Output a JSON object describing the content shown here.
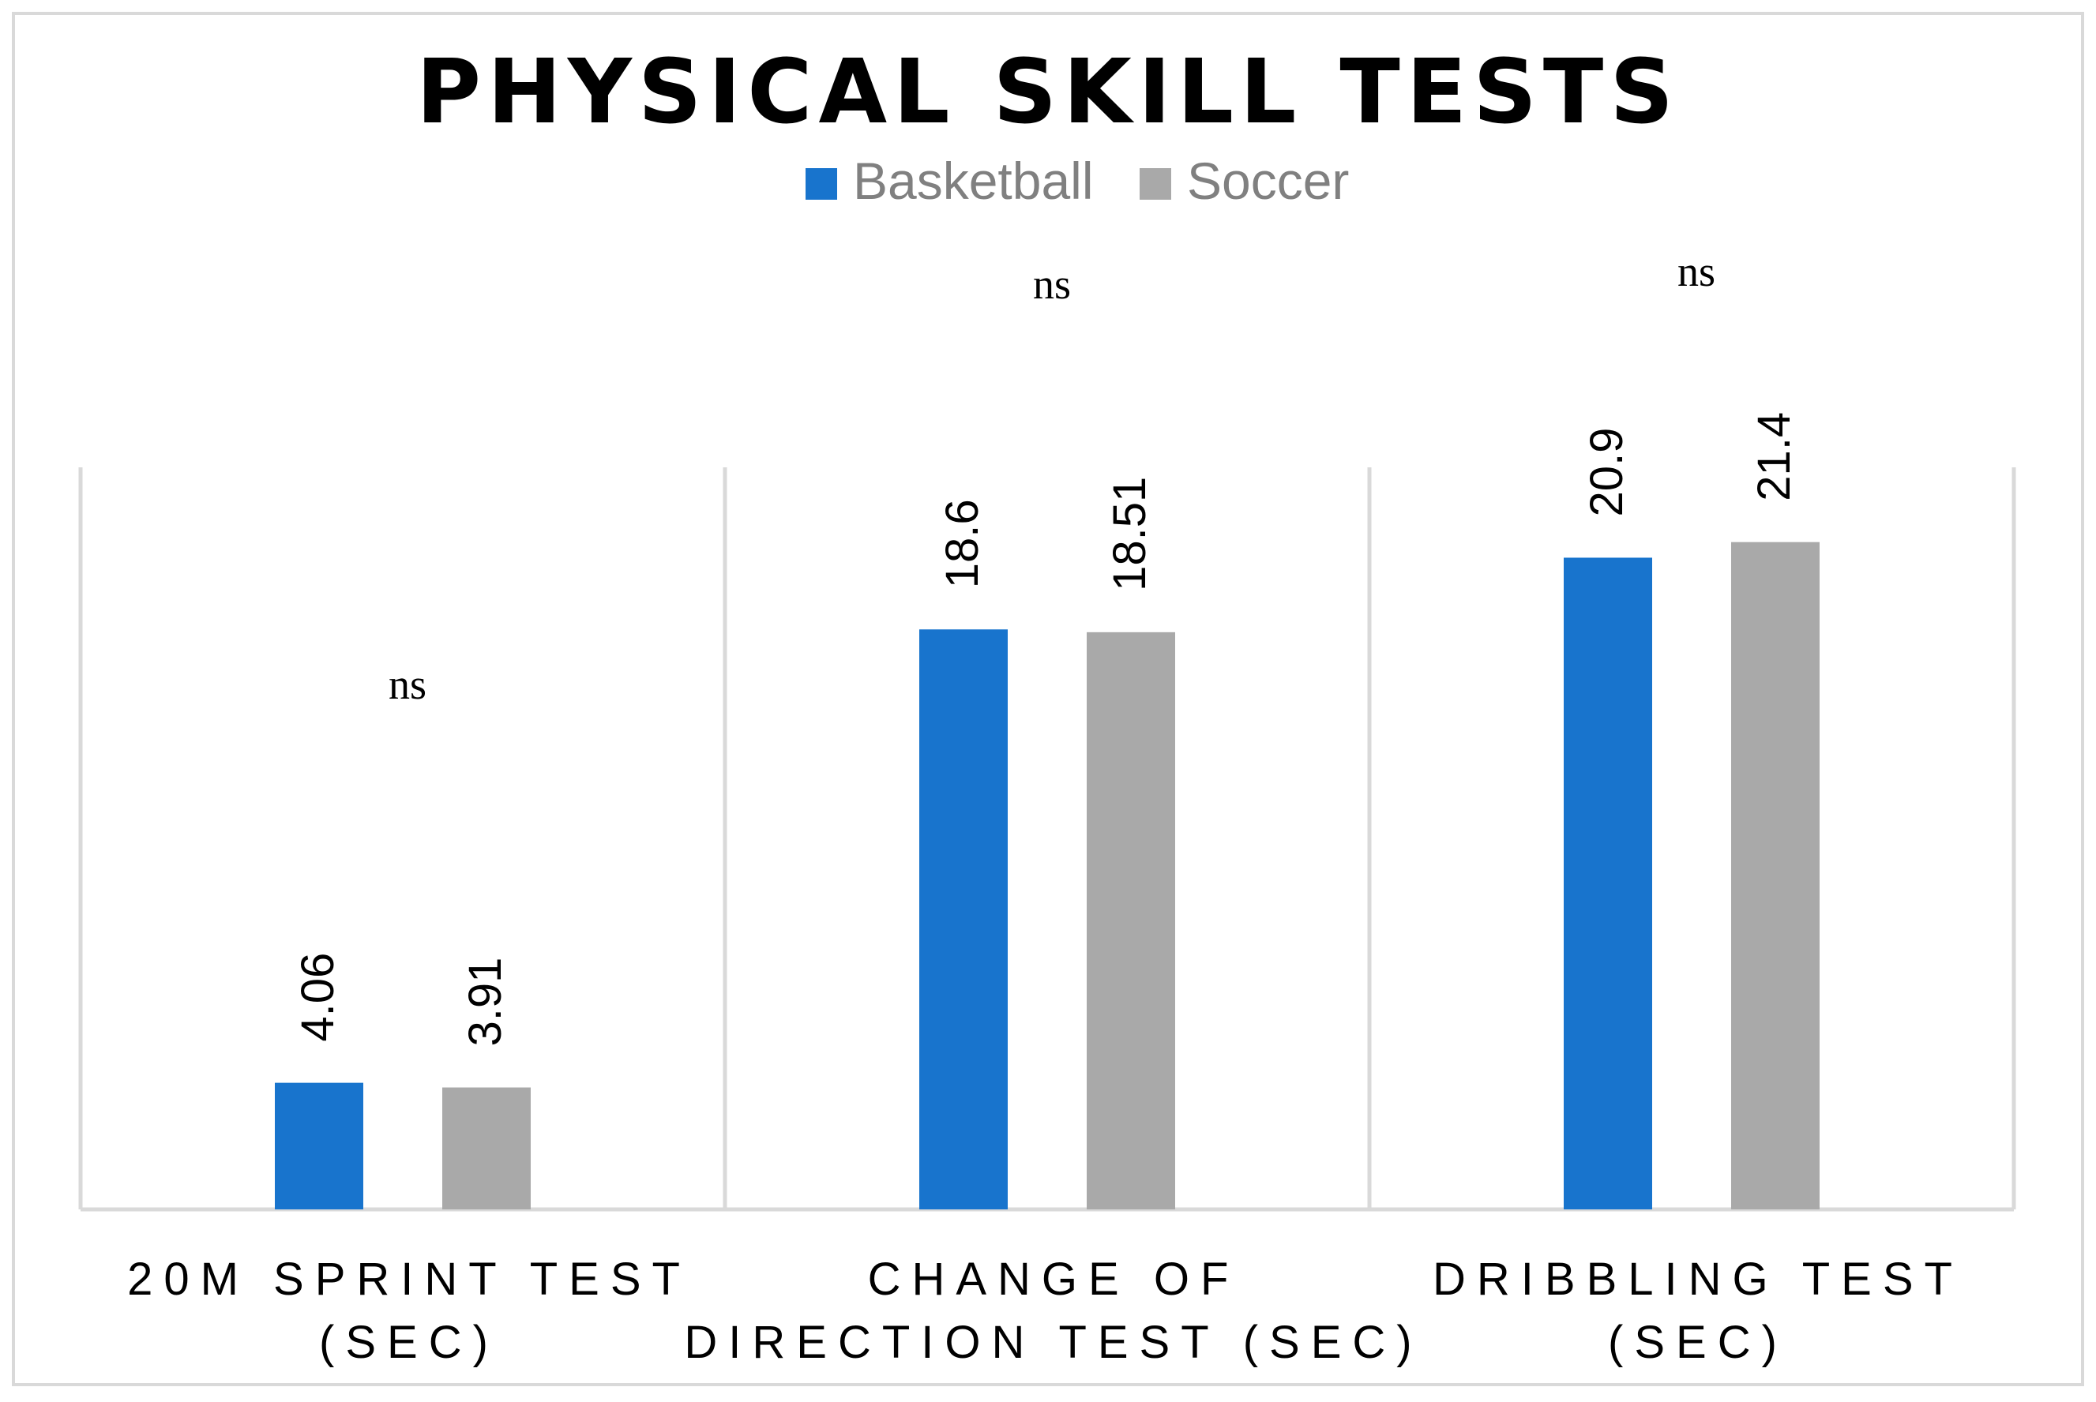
{
  "chart_data": {
    "type": "bar",
    "title": "PHYSICAL SKILL TESTS",
    "legend_position": "top-center",
    "grid": false,
    "categories": [
      [
        "20M SPRINT TEST",
        "(SEC)"
      ],
      [
        "CHANGE OF",
        "DIRECTION TEST (SEC)"
      ],
      [
        "DRIBBLING TEST",
        "(SEC)"
      ]
    ],
    "series": [
      {
        "name": "Basketball",
        "color": "#1874CD",
        "values": [
          4.06,
          18.6,
          20.9
        ]
      },
      {
        "name": "Soccer",
        "color": "#A9A9A9",
        "values": [
          3.91,
          18.51,
          21.4
        ]
      }
    ],
    "value_labels": [
      [
        "4.06",
        "18.6",
        "20.9"
      ],
      [
        "3.91",
        "18.51",
        "21.4"
      ]
    ],
    "annotations": [
      "ns",
      "ns",
      "ns"
    ],
    "ylim": [
      0,
      25
    ]
  }
}
